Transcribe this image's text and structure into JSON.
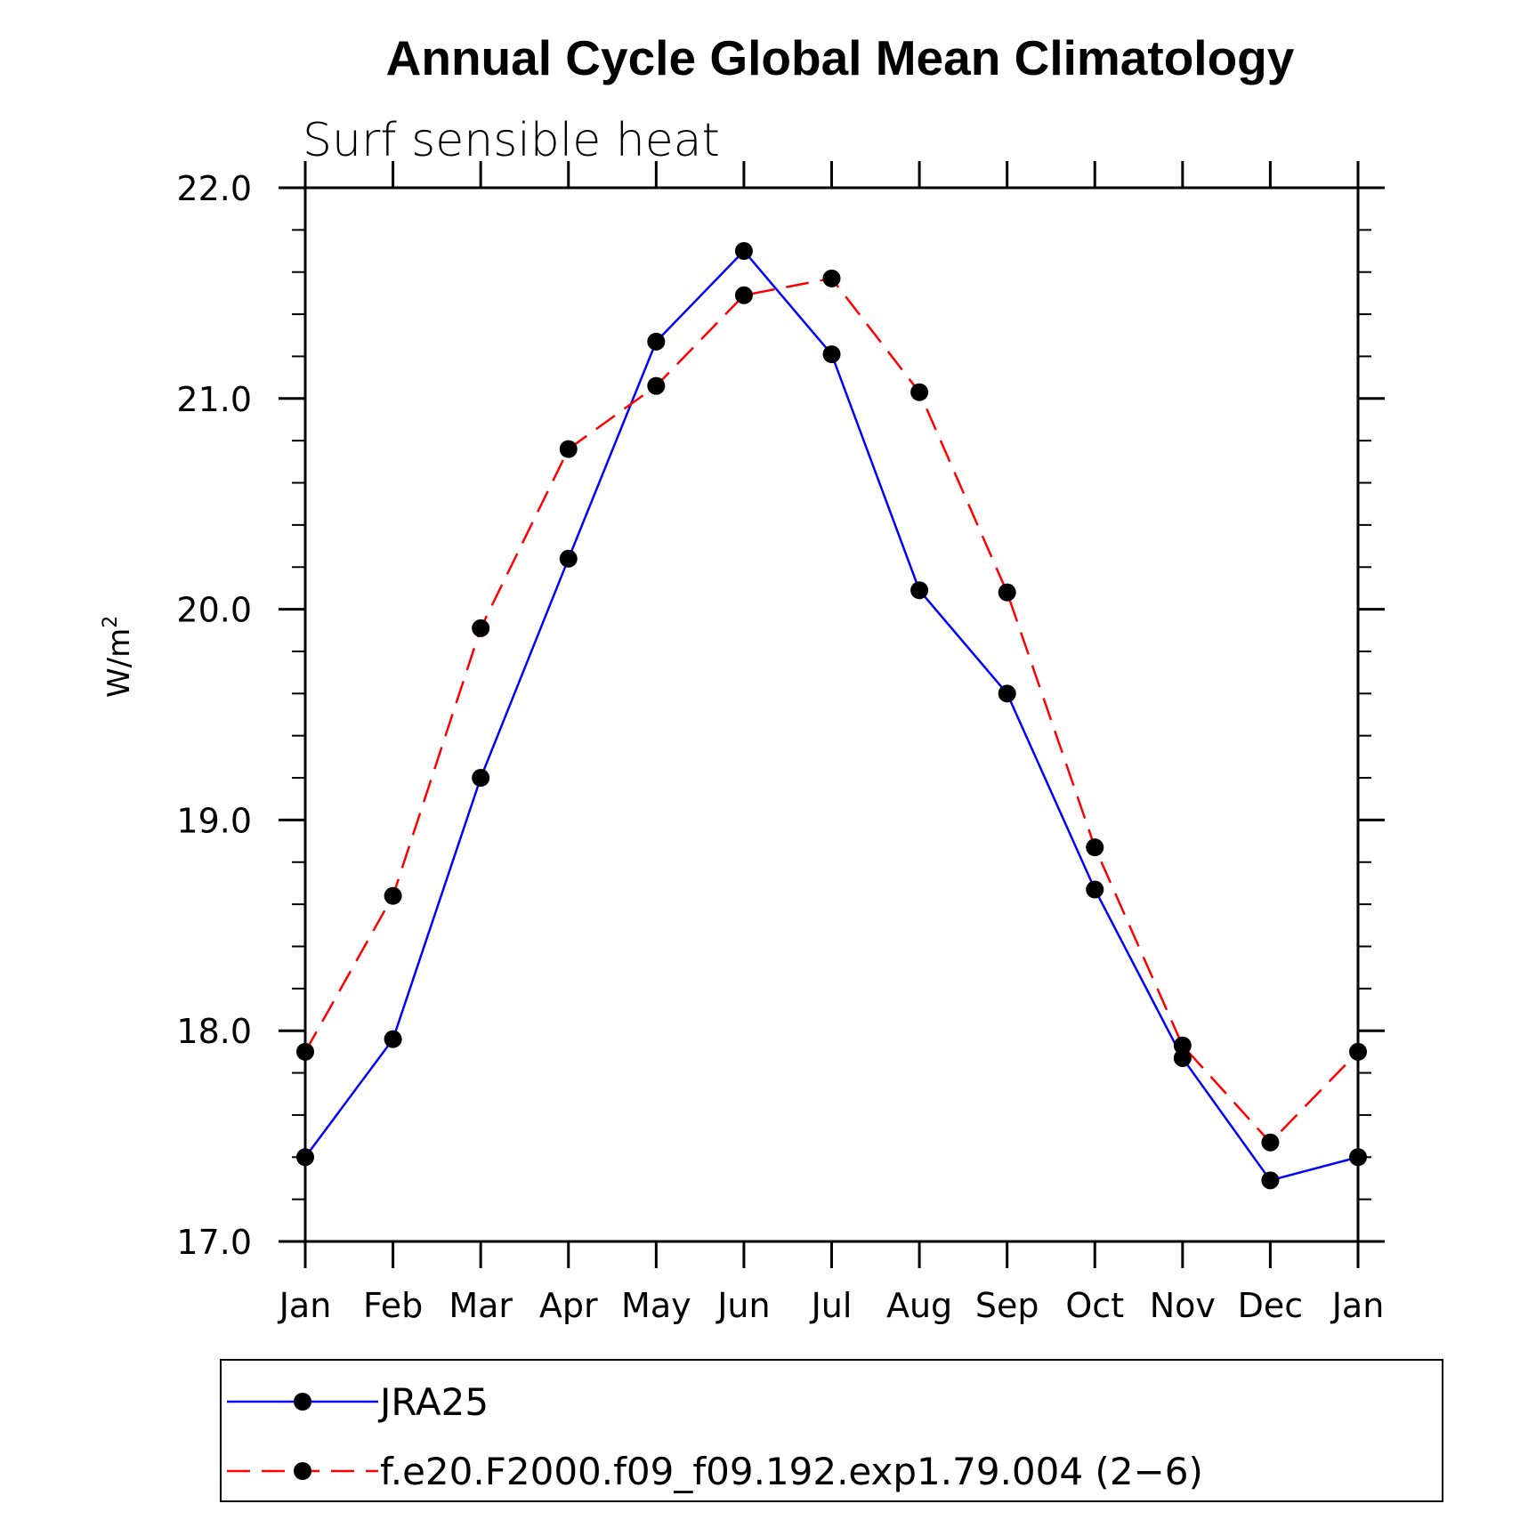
{
  "chart_data": {
    "type": "line",
    "title": "Annual Cycle Global Mean Climatology",
    "subtitle": "Surf sensible heat",
    "ylabel_base": "W/m",
    "ylabel_sup": "2",
    "xlabel": "",
    "categories": [
      "Jan",
      "Feb",
      "Mar",
      "Apr",
      "May",
      "Jun",
      "Jul",
      "Aug",
      "Sep",
      "Oct",
      "Nov",
      "Dec",
      "Jan"
    ],
    "ylim": [
      17.0,
      22.0
    ],
    "yticks": [
      "17.0",
      "18.0",
      "19.0",
      "20.0",
      "21.0",
      "22.0"
    ],
    "grid": false,
    "legend_position": "bottom",
    "series": [
      {
        "name": "JRA25",
        "color": "#0000ff",
        "dash": "solid",
        "values": [
          17.4,
          17.96,
          19.2,
          20.24,
          21.27,
          21.7,
          21.21,
          20.09,
          19.6,
          18.67,
          17.87,
          17.29,
          17.4
        ]
      },
      {
        "name": "f.e20.F2000.f09_f09.192.exp1.79.004 (2−6)",
        "color": "#ff0000",
        "dash": "dashed",
        "values": [
          17.9,
          18.64,
          19.91,
          20.76,
          21.06,
          21.49,
          21.57,
          21.03,
          20.08,
          18.87,
          17.93,
          17.47,
          17.9
        ]
      }
    ]
  }
}
